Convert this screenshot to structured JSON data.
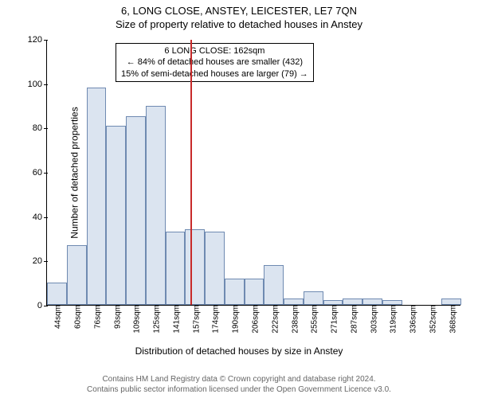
{
  "title_main": "6, LONG CLOSE, ANSTEY, LEICESTER, LE7 7QN",
  "title_sub": "Size of property relative to detached houses in Anstey",
  "chart": {
    "type": "histogram",
    "background_color": "#ffffff",
    "bar_fill_color": "#dbe4f0",
    "bar_border_color": "#6f8ab1",
    "ref_line_color": "#c82a2a",
    "ref_line_x_index": 7.25,
    "ylabel": "Number of detached properties",
    "xlabel": "Distribution of detached houses by size in Anstey",
    "ylim": [
      0,
      120
    ],
    "yticks": [
      0,
      20,
      40,
      60,
      80,
      100,
      120
    ],
    "label_fontsize": 12,
    "tick_fontsize": 11,
    "categories": [
      "44sqm",
      "60sqm",
      "76sqm",
      "93sqm",
      "109sqm",
      "125sqm",
      "141sqm",
      "157sqm",
      "174sqm",
      "190sqm",
      "206sqm",
      "222sqm",
      "238sqm",
      "255sqm",
      "271sqm",
      "287sqm",
      "303sqm",
      "319sqm",
      "336sqm",
      "352sqm",
      "368sqm"
    ],
    "values": [
      10,
      27,
      98,
      81,
      85,
      90,
      33,
      34,
      33,
      12,
      12,
      18,
      3,
      6,
      2,
      3,
      3,
      2,
      0,
      0,
      3
    ],
    "bar_width_ratio": 1.0
  },
  "annotation": {
    "line1": "6 LONG CLOSE: 162sqm",
    "line2": "← 84% of detached houses are smaller (432)",
    "line3": "15% of semi-detached houses are larger (79) →",
    "border_color": "#000000",
    "background": "#ffffff",
    "fontsize": 11
  },
  "footer": {
    "line1": "Contains HM Land Registry data © Crown copyright and database right 2024.",
    "line2": "Contains public sector information licensed under the Open Government Licence v3.0.",
    "color": "#666666",
    "fontsize": 10
  }
}
